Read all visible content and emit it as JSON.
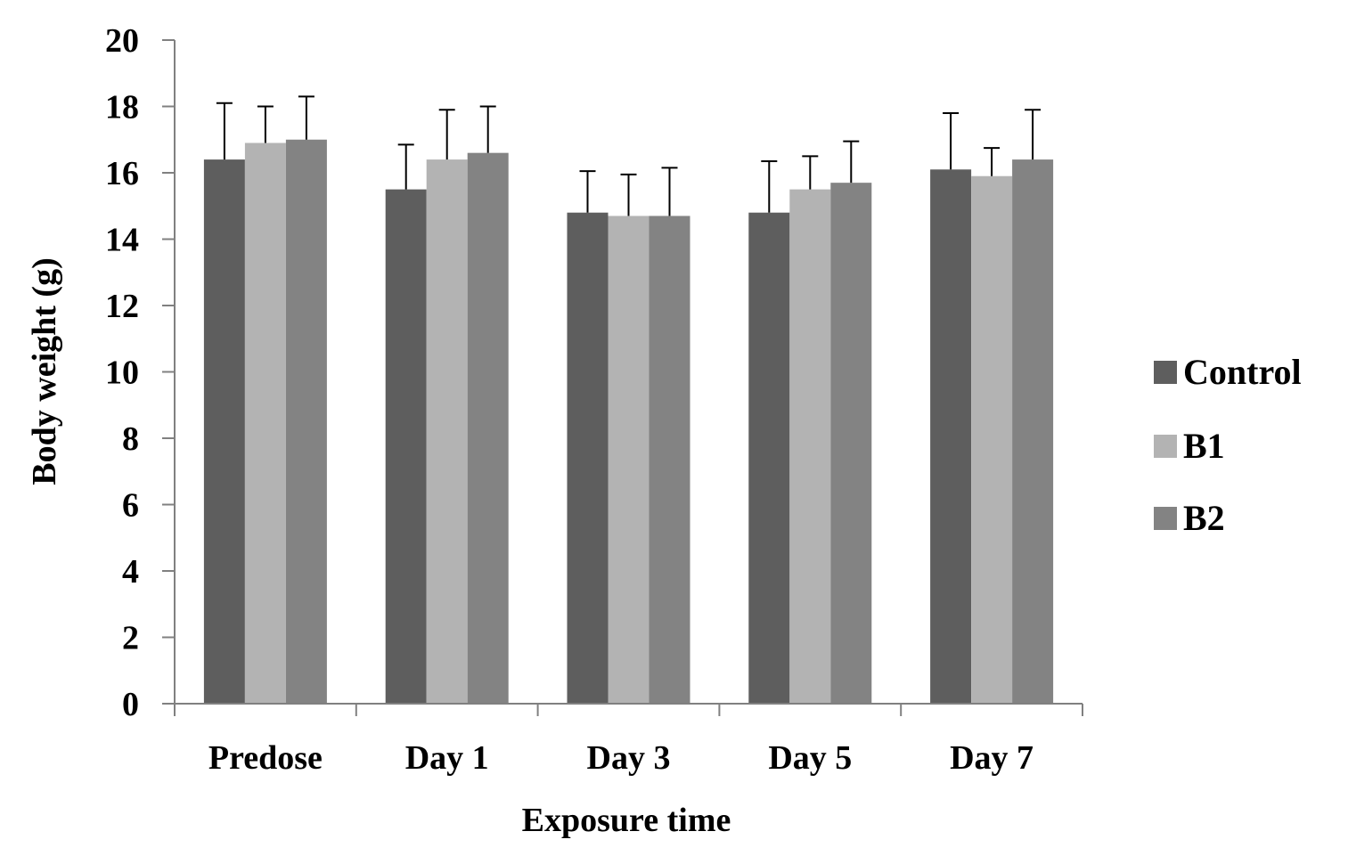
{
  "chart_data": {
    "type": "bar",
    "title": "",
    "xlabel": "Exposure time",
    "ylabel": "Body weight (g)",
    "ylim": [
      0,
      20
    ],
    "yticks": [
      0,
      2,
      4,
      6,
      8,
      10,
      12,
      14,
      16,
      18,
      20
    ],
    "grid": false,
    "legend_position": "right",
    "categories": [
      "Predose",
      "Day 1",
      "Day 3",
      "Day 5",
      "Day 7"
    ],
    "series": [
      {
        "name": "Control",
        "color": "#5e5e5e",
        "values": [
          16.4,
          15.5,
          14.8,
          14.8,
          16.1
        ],
        "errors": [
          1.7,
          1.35,
          1.25,
          1.55,
          1.7
        ]
      },
      {
        "name": "B1",
        "color": "#b3b3b3",
        "values": [
          16.9,
          16.4,
          14.7,
          15.5,
          15.9
        ],
        "errors": [
          1.1,
          1.5,
          1.25,
          1.0,
          0.85
        ]
      },
      {
        "name": "B2",
        "color": "#838383",
        "values": [
          17.0,
          16.6,
          14.7,
          15.7,
          16.4
        ],
        "errors": [
          1.3,
          1.4,
          1.45,
          1.25,
          1.5
        ]
      }
    ]
  }
}
